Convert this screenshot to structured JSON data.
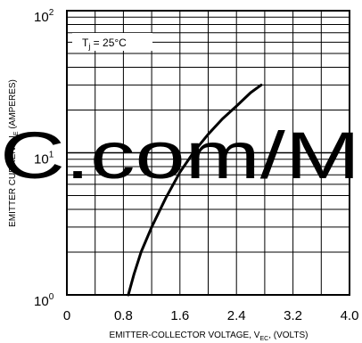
{
  "chart_data": {
    "type": "line",
    "xlabel": "EMITTER-COLLECTOR VOLTAGE, V",
    "xlabel_sub": "EC",
    "xlabel_suffix": ", (VOLTS)",
    "ylabel": "EMITTER CURRENT, I",
    "ylabel_sub": "E",
    "ylabel_suffix": " (AMPERES)",
    "x_ticks": [
      "0",
      "0.8",
      "1.6",
      "2.4",
      "3.2",
      "4.0"
    ],
    "x_tick_values": [
      0,
      0.8,
      1.6,
      2.4,
      3.2,
      4.0
    ],
    "y_ticks": [
      {
        "base": "10",
        "exp": "0",
        "value": 1
      },
      {
        "base": "10",
        "exp": "1",
        "value": 10
      },
      {
        "base": "10",
        "exp": "2",
        "value": 100
      }
    ],
    "xlim": [
      0,
      4.0
    ],
    "ylim": [
      1,
      100
    ],
    "y_scale": "log",
    "grid": true,
    "annotation": {
      "prefix": "T",
      "sub": "j",
      "suffix": " = 25°C"
    },
    "series": [
      {
        "color": "#000000",
        "x": [
          0.87,
          0.95,
          1.05,
          1.2,
          1.4,
          1.6,
          1.8,
          2.0,
          2.2,
          2.4,
          2.6,
          2.75
        ],
        "y": [
          1.0,
          1.4,
          2.0,
          3.0,
          4.8,
          7.3,
          10.2,
          13.5,
          17.3,
          21.3,
          26.5,
          30.0
        ]
      }
    ]
  },
  "watermark": {
    "text": "C.com/M",
    "color": "#0000ff"
  }
}
